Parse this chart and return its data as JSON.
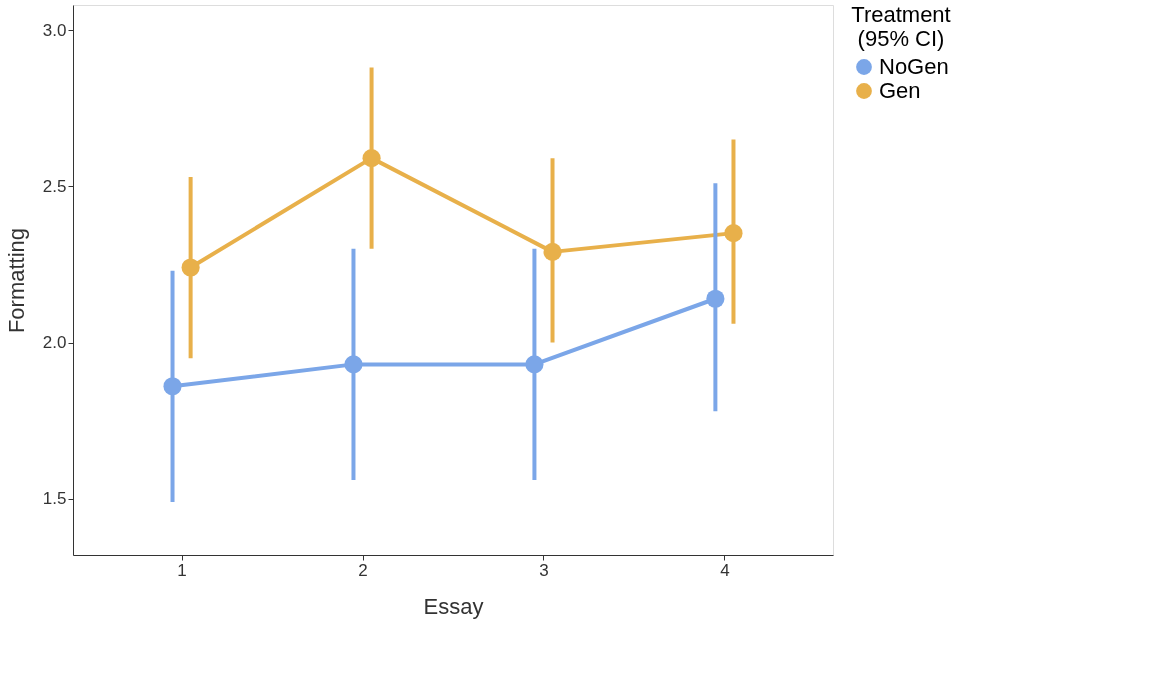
{
  "chart_data": {
    "type": "line",
    "xlabel": "Essay",
    "ylabel": "Formatting",
    "legend_title": "Treatment\n(95% CI)",
    "xlim": [
      0.4,
      4.6
    ],
    "xticks": [
      1,
      2,
      3,
      4
    ],
    "ylim": [
      1.32,
      3.08
    ],
    "yticks": [
      1.5,
      {
        "value": 2,
        "label": "2.0"
      },
      2.5,
      {
        "value": 3,
        "label": "3.0"
      }
    ],
    "grid": false,
    "legend": "right",
    "marker": "circle",
    "line_style": "solid",
    "series": [
      {
        "name": "NoGen",
        "color": "#7ba6e8",
        "x": [
          0.95,
          1.95,
          2.95,
          3.95
        ],
        "values": [
          1.86,
          1.93,
          1.93,
          2.14
        ],
        "errors": [
          [
            1.49,
            2.23
          ],
          [
            1.56,
            2.3
          ],
          [
            1.56,
            2.3
          ],
          [
            1.78,
            2.51
          ]
        ]
      },
      {
        "name": "Gen",
        "color": "#e8b04a",
        "x": [
          1.05,
          2.05,
          3.05,
          4.05
        ],
        "values": [
          2.24,
          2.59,
          2.29,
          2.35
        ],
        "errors": [
          [
            1.95,
            2.53
          ],
          [
            2.3,
            2.88
          ],
          [
            2.0,
            2.59
          ],
          [
            2.06,
            2.65
          ]
        ]
      }
    ]
  }
}
